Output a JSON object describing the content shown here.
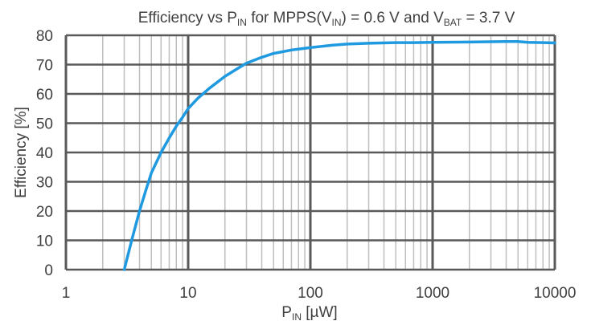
{
  "chart_data": {
    "type": "line",
    "title": {
      "t1": "Efficiency vs P",
      "t2": "IN",
      "t3": " for MPPS(V",
      "t4": "IN",
      "t5": ") = 0.6 V and V",
      "t6": "BAT",
      "t7": " = 3.7 V"
    },
    "xlabel": {
      "main": "P",
      "sub": "IN",
      "rest": " [µW]"
    },
    "ylabel": "Efficiency [%]",
    "x_scale": "log",
    "xlim": [
      1,
      10000
    ],
    "ylim": [
      0,
      80
    ],
    "x_ticks": [
      1,
      10,
      100,
      1000,
      10000
    ],
    "x_tick_labels": [
      "1",
      "10",
      "100",
      "1000",
      "10000"
    ],
    "y_ticks": [
      0,
      10,
      20,
      30,
      40,
      50,
      60,
      70,
      80
    ],
    "y_tick_labels": [
      "0",
      "10",
      "20",
      "30",
      "40",
      "50",
      "60",
      "70",
      "80"
    ],
    "grid": true,
    "legend": "none",
    "colors": {
      "series": "#1f9ae0",
      "major_grid": "#595959",
      "minor_grid": "#bfbfbf",
      "text": "#404040"
    },
    "series": [
      {
        "x": [
          3,
          3.5,
          4,
          4.5,
          5,
          6,
          7,
          8,
          9,
          10,
          12,
          15,
          20,
          25,
          30,
          40,
          50,
          70,
          100,
          150,
          200,
          300,
          500,
          700,
          1000,
          2000,
          3000,
          4000,
          5000,
          6000,
          8000,
          10000
        ],
        "y": [
          0,
          11,
          20,
          27,
          33,
          40,
          45,
          49,
          52,
          55,
          58.5,
          62,
          66,
          68.5,
          70.5,
          72.5,
          73.8,
          75,
          75.8,
          76.6,
          77,
          77.3,
          77.5,
          77.5,
          77.6,
          77.7,
          77.8,
          77.9,
          77.9,
          77.6,
          77.5,
          77.4
        ]
      }
    ]
  }
}
